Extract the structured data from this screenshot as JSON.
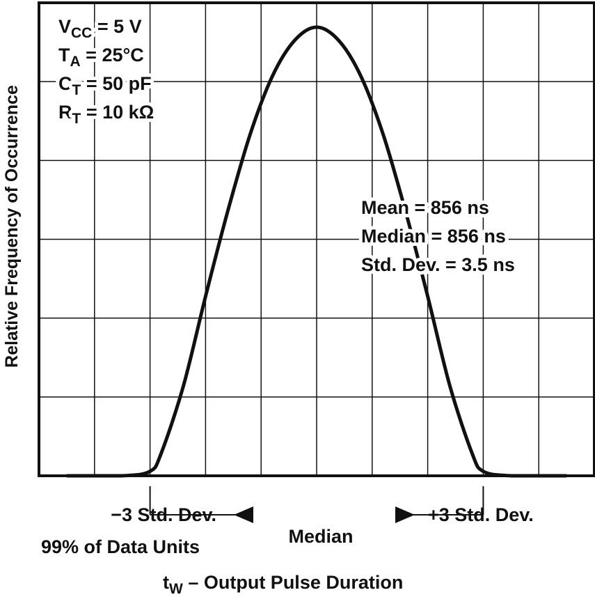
{
  "chart_data": {
    "type": "line",
    "title": "",
    "xlabel": {
      "prefix": "t",
      "subscript": "W",
      "text": " – Output Pulse Duration"
    },
    "ylabel": "Relative Frequency of Occurrence",
    "x_units": "standard deviations from median",
    "xlim": [
      -5,
      5
    ],
    "ylim": [
      0,
      1
    ],
    "grid": true,
    "series": [
      {
        "name": "Output pulse duration distribution",
        "x": [
          -4.5,
          -3.5,
          -3,
          -2.8,
          -2.4,
          -2,
          -1.6,
          -1.2,
          -0.8,
          -0.4,
          0,
          0.4,
          0.8,
          1.2,
          1.6,
          2,
          2.4,
          2.8,
          3,
          3.5,
          4.5
        ],
        "values": [
          0,
          0,
          0.01,
          0.05,
          0.2,
          0.4,
          0.59,
          0.76,
          0.89,
          0.97,
          1.0,
          0.97,
          0.89,
          0.76,
          0.59,
          0.4,
          0.2,
          0.05,
          0.01,
          0,
          0
        ]
      }
    ],
    "conditions": [
      {
        "main": "V",
        "sub": "CC",
        "rest": " = 5 V"
      },
      {
        "main": "T",
        "sub": "A",
        "rest": " = 25°C"
      },
      {
        "main": "C",
        "sub": "T",
        "rest": " = 50 pF"
      },
      {
        "main": "R",
        "sub": "T",
        "rest": " = 10 kΩ"
      }
    ],
    "statistics": [
      "Mean = 856 ns",
      "Median = 856 ns",
      "Std. Dev. = 3.5 ns"
    ],
    "annotations": {
      "minus": {
        "text": "−3 Std. Dev.",
        "x": -3
      },
      "plus": {
        "text": "+3 Std. Dev.",
        "x": 3
      },
      "median": {
        "text": "Median",
        "x": 0
      },
      "coverage": "99% of Data Units"
    }
  }
}
